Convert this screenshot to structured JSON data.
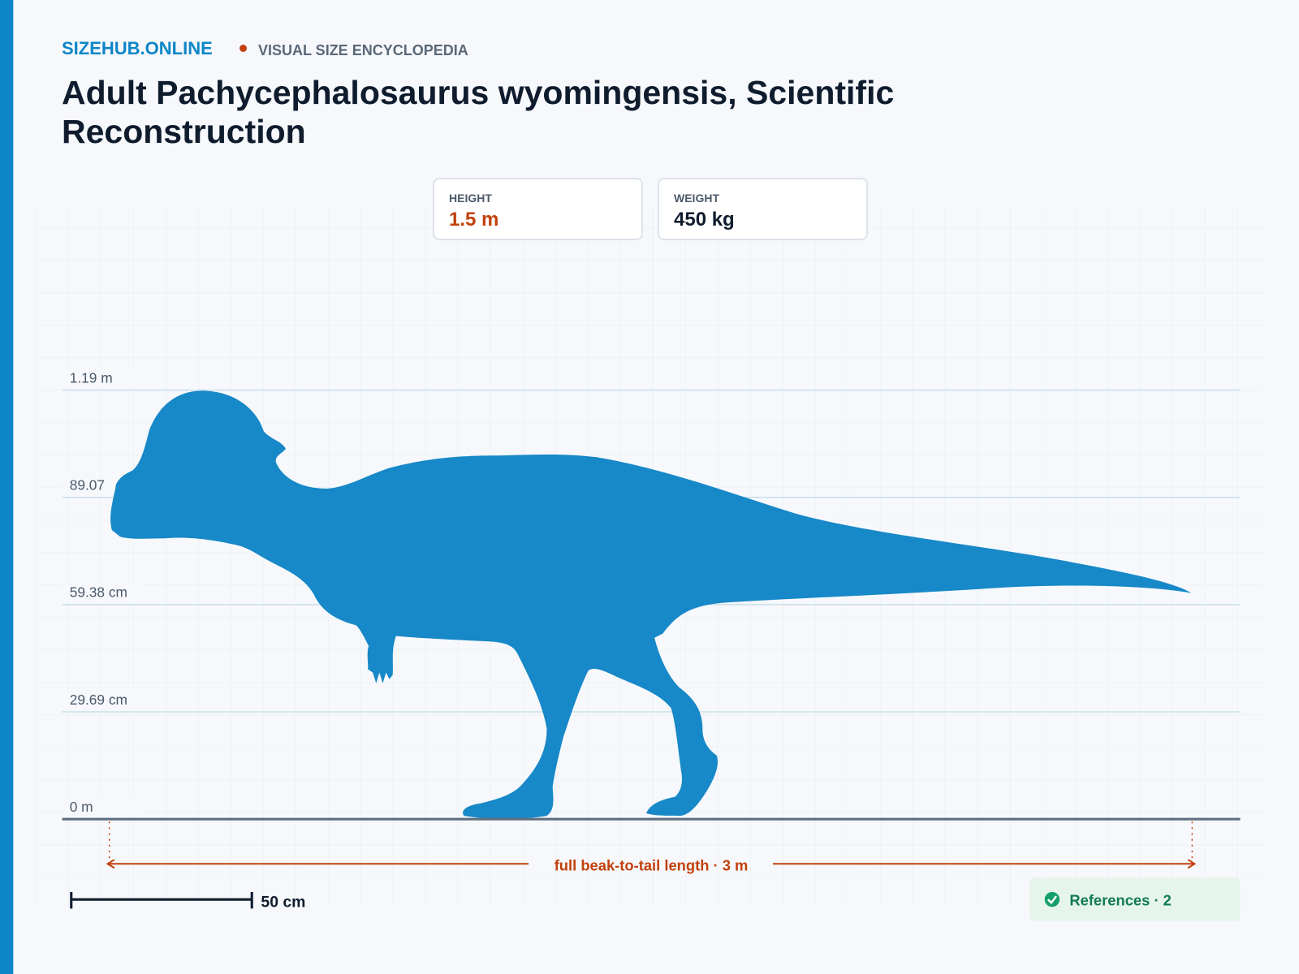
{
  "header": {
    "brand": "SIZEHUB.ONLINE",
    "tagline": "VISUAL SIZE ENCYCLOPEDIA"
  },
  "title": "Adult Pachycephalosaurus wyomingensis, Scientific Reconstruction",
  "stats": [
    {
      "label": "HEIGHT",
      "value": "1.5 m"
    },
    {
      "label": "WEIGHT",
      "value": "450 kg"
    }
  ],
  "height_scale": [
    "1.19 m",
    "89.07",
    "59.38 cm",
    "29.69 cm",
    "0 m"
  ],
  "length_annotation": "full beak-to-tail length · 3 m",
  "scale_bar": "50 cm",
  "references": "References · 2"
}
